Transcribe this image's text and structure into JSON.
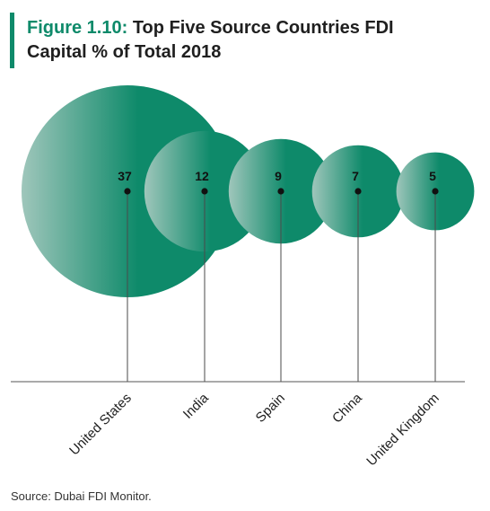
{
  "figure_label": "Figure 1.10:",
  "figure_title": "Top Five Source Countries FDI Capital % of Total 2018",
  "source": "Source: Dubai FDI Monitor.",
  "colors": {
    "accent": "#0e8a6a",
    "bubble_light": "#9fc6bb",
    "axis": "#555555",
    "text": "#1f1f1f"
  },
  "chart_data": {
    "type": "bubble",
    "title": "Top Five Source Countries FDI Capital % of Total 2018",
    "categories": [
      "United States",
      "India",
      "Spain",
      "China",
      "United Kingdom"
    ],
    "values": [
      37,
      12,
      9,
      7,
      5
    ],
    "value_labels": [
      "37",
      "12",
      "9",
      "7",
      "5"
    ],
    "grid": false,
    "legend": "none"
  }
}
